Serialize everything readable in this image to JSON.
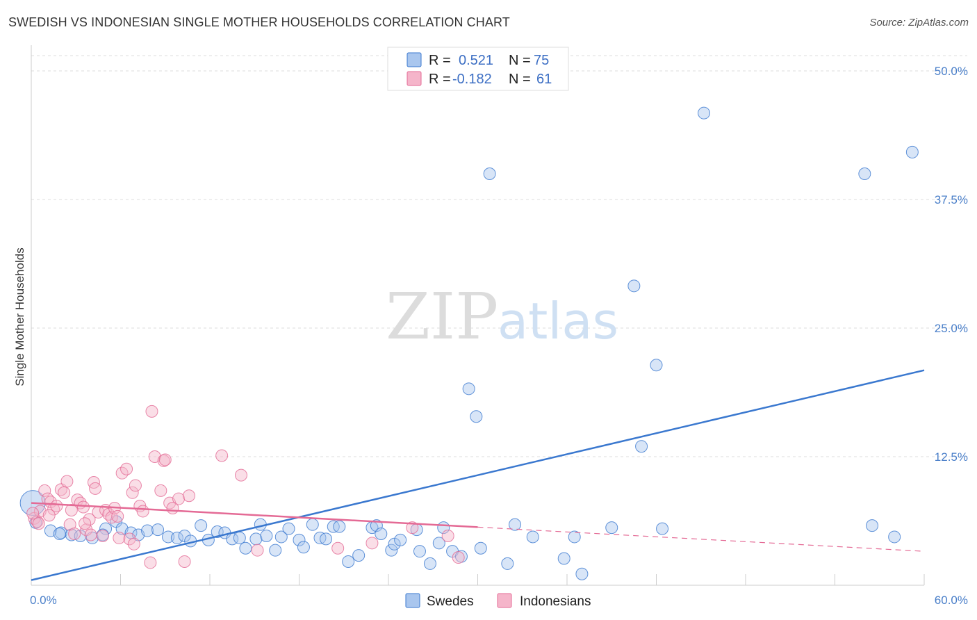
{
  "title": "SWEDISH VS INDONESIAN SINGLE MOTHER HOUSEHOLDS CORRELATION CHART",
  "source": "Source: ZipAtlas.com",
  "watermark": {
    "part1": "ZIP",
    "part2": "atlas"
  },
  "colors": {
    "blue": "#3a78cf",
    "pink": "#e46a95",
    "blue_fill": "#a9c6ee",
    "pink_fill": "#f5b5ca"
  },
  "legend": {
    "rows": [
      {
        "r_label": "R =",
        "r_value": "0.521",
        "n_label": "N =",
        "n_value": "75"
      },
      {
        "r_label": "R =",
        "r_value": "-0.182",
        "n_label": "N =",
        "n_value": "61"
      }
    ]
  },
  "chart_data": {
    "type": "scatter",
    "ylabel": "Single Mother Households",
    "xlim": [
      0,
      60
    ],
    "ylim": [
      0,
      52.5
    ],
    "x_tick_labels": [
      "0.0%",
      "60.0%"
    ],
    "y_ticks": [
      12.5,
      25.0,
      37.5,
      50.0
    ],
    "y_tick_labels": [
      "12.5%",
      "25.0%",
      "37.5%",
      "50.0%"
    ],
    "grid": true,
    "series": [
      {
        "name": "Swedes",
        "color": "blue",
        "points": [
          [
            0.1,
            8.0
          ],
          [
            0.3,
            6.1
          ],
          [
            1.3,
            5.3
          ],
          [
            2.0,
            5.1
          ],
          [
            2.7,
            4.9
          ],
          [
            3.3,
            4.8
          ],
          [
            4.1,
            4.6
          ],
          [
            5.0,
            5.5
          ],
          [
            5.7,
            6.2
          ],
          [
            6.1,
            5.5
          ],
          [
            6.7,
            5.1
          ],
          [
            7.2,
            4.9
          ],
          [
            7.8,
            5.3
          ],
          [
            8.5,
            5.4
          ],
          [
            9.2,
            4.7
          ],
          [
            9.8,
            4.6
          ],
          [
            10.3,
            4.8
          ],
          [
            10.7,
            4.3
          ],
          [
            11.4,
            5.8
          ],
          [
            11.9,
            4.4
          ],
          [
            12.5,
            5.2
          ],
          [
            13.0,
            5.1
          ],
          [
            13.5,
            4.5
          ],
          [
            14.0,
            4.6
          ],
          [
            14.4,
            3.6
          ],
          [
            15.1,
            4.5
          ],
          [
            15.4,
            5.9
          ],
          [
            15.8,
            4.8
          ],
          [
            16.4,
            3.4
          ],
          [
            16.8,
            4.7
          ],
          [
            17.3,
            5.5
          ],
          [
            18.0,
            4.4
          ],
          [
            18.3,
            3.7
          ],
          [
            18.9,
            5.9
          ],
          [
            19.4,
            4.6
          ],
          [
            19.8,
            4.5
          ],
          [
            20.3,
            5.7
          ],
          [
            20.7,
            5.7
          ],
          [
            21.3,
            2.3
          ],
          [
            22.0,
            2.9
          ],
          [
            22.9,
            5.6
          ],
          [
            23.2,
            5.8
          ],
          [
            23.5,
            5.0
          ],
          [
            24.2,
            3.4
          ],
          [
            24.4,
            4.0
          ],
          [
            24.8,
            4.4
          ],
          [
            25.9,
            5.4
          ],
          [
            26.1,
            3.3
          ],
          [
            26.8,
            2.1
          ],
          [
            27.4,
            4.1
          ],
          [
            27.7,
            5.6
          ],
          [
            28.3,
            3.3
          ],
          [
            28.9,
            2.8
          ],
          [
            29.4,
            19.1
          ],
          [
            29.9,
            16.4
          ],
          [
            30.2,
            3.6
          ],
          [
            30.8,
            40.0
          ],
          [
            32.0,
            2.1
          ],
          [
            32.5,
            5.9
          ],
          [
            33.7,
            4.7
          ],
          [
            35.8,
            2.6
          ],
          [
            36.5,
            4.7
          ],
          [
            37.0,
            1.1
          ],
          [
            39.0,
            5.6
          ],
          [
            41.0,
            13.5
          ],
          [
            40.5,
            29.1
          ],
          [
            42.0,
            21.4
          ],
          [
            42.4,
            5.5
          ],
          [
            45.2,
            45.9
          ],
          [
            56.0,
            40.0
          ],
          [
            56.5,
            5.8
          ],
          [
            58.0,
            4.7
          ],
          [
            59.2,
            42.1
          ],
          [
            1.9,
            5.0
          ],
          [
            4.8,
            4.9
          ]
        ],
        "trend": {
          "x0": 0,
          "y0": 0.5,
          "x1": 60,
          "y1": 20.9,
          "dash_from": null
        }
      },
      {
        "name": "Indonesians",
        "color": "pink",
        "points": [
          [
            0.2,
            6.5
          ],
          [
            0.4,
            6.2
          ],
          [
            0.6,
            7.2
          ],
          [
            0.9,
            9.2
          ],
          [
            1.1,
            8.4
          ],
          [
            1.3,
            8.1
          ],
          [
            1.5,
            7.4
          ],
          [
            1.7,
            7.7
          ],
          [
            2.0,
            9.3
          ],
          [
            2.2,
            9.0
          ],
          [
            2.4,
            10.1
          ],
          [
            2.7,
            7.3
          ],
          [
            2.6,
            5.9
          ],
          [
            3.1,
            8.3
          ],
          [
            3.3,
            8.0
          ],
          [
            3.5,
            7.6
          ],
          [
            3.7,
            5.4
          ],
          [
            3.9,
            6.4
          ],
          [
            4.0,
            4.9
          ],
          [
            4.2,
            10.0
          ],
          [
            4.3,
            9.4
          ],
          [
            4.5,
            7.1
          ],
          [
            4.8,
            4.8
          ],
          [
            5.0,
            7.3
          ],
          [
            5.2,
            6.9
          ],
          [
            5.4,
            6.6
          ],
          [
            5.6,
            7.5
          ],
          [
            5.8,
            6.7
          ],
          [
            6.1,
            10.9
          ],
          [
            6.4,
            11.3
          ],
          [
            6.6,
            4.5
          ],
          [
            6.8,
            9.0
          ],
          [
            7.0,
            9.7
          ],
          [
            7.3,
            7.7
          ],
          [
            7.5,
            7.2
          ],
          [
            8.0,
            2.2
          ],
          [
            8.1,
            16.9
          ],
          [
            8.3,
            12.5
          ],
          [
            8.7,
            9.2
          ],
          [
            8.9,
            12.1
          ],
          [
            9.0,
            12.2
          ],
          [
            9.3,
            8.0
          ],
          [
            9.9,
            8.4
          ],
          [
            10.3,
            2.3
          ],
          [
            10.6,
            8.7
          ],
          [
            12.8,
            12.6
          ],
          [
            14.1,
            10.7
          ],
          [
            15.2,
            3.4
          ],
          [
            20.6,
            3.6
          ],
          [
            22.9,
            4.1
          ],
          [
            25.6,
            5.6
          ],
          [
            28.0,
            4.8
          ],
          [
            28.7,
            2.7
          ],
          [
            0.1,
            7.0
          ],
          [
            0.5,
            6.0
          ],
          [
            1.2,
            6.8
          ],
          [
            3.6,
            6.0
          ],
          [
            6.9,
            4.0
          ],
          [
            9.5,
            7.5
          ],
          [
            5.9,
            4.6
          ],
          [
            2.9,
            5.0
          ]
        ],
        "trend": {
          "x0": 0,
          "y0": 8.0,
          "x1": 60,
          "y1": 3.3,
          "dash_from": 30
        }
      }
    ]
  }
}
